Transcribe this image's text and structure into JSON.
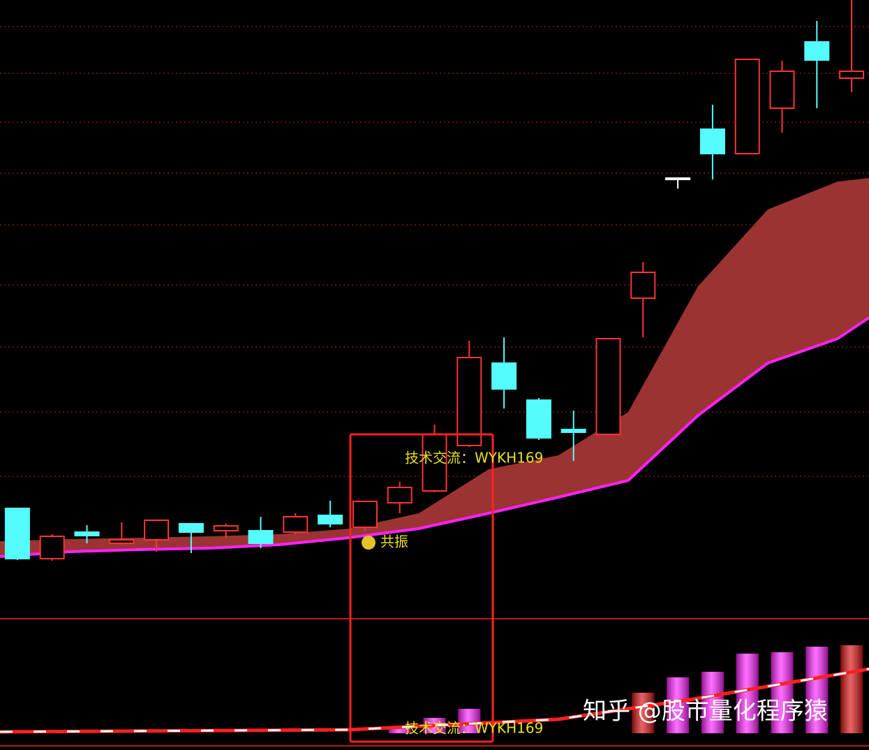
{
  "chart_data": [
    {
      "type": "candlestick",
      "xlim": [
        0,
        1245
      ],
      "ylim": [
        0,
        880
      ],
      "categories": [
        null,
        null,
        null,
        null,
        null,
        null,
        null,
        null,
        null,
        null,
        null,
        null,
        null,
        null,
        null,
        null,
        null,
        null,
        null,
        null,
        null,
        null,
        null,
        null,
        null
      ],
      "open": [
        152,
        80,
        118,
        102,
        107,
        130,
        120,
        120,
        118,
        142,
        125,
        160,
        177,
        242,
        360,
        307,
        265,
        258,
        453,
        625,
        695,
        660,
        725,
        820,
        768
      ],
      "high": [
        152,
        115,
        128,
        132,
        135,
        130,
        130,
        140,
        145,
        163,
        162,
        190,
        272,
        392,
        397,
        310,
        292,
        395,
        505,
        625,
        730,
        795,
        793,
        850,
        880
      ],
      "low": [
        78,
        77,
        102,
        100,
        90,
        88,
        110,
        95,
        115,
        125,
        120,
        145,
        175,
        240,
        295,
        250,
        220,
        258,
        397,
        610,
        623,
        660,
        690,
        725,
        748
      ],
      "close": [
        80,
        112,
        113,
        107,
        135,
        118,
        127,
        102,
        140,
        130,
        162,
        182,
        258,
        368,
        323,
        253,
        261,
        395,
        490,
        625,
        660,
        795,
        778,
        794,
        778
      ],
      "up_color": "#ff3434",
      "down_color": "#54fcfc",
      "flat_color": "#ffffff",
      "grid": true,
      "grid_color": "#c02020",
      "gridlines": [
        842,
        775,
        705,
        632,
        558,
        472,
        383,
        290,
        198
      ],
      "bands": {
        "x": [
          0,
          100,
          200,
          300,
          400,
          500,
          600,
          700,
          800,
          900,
          1000,
          1100,
          1200,
          1245
        ],
        "lower": [
          83,
          90,
          93,
          95,
          100,
          110,
          123,
          145,
          168,
          192,
          285,
          360,
          395,
          425
        ],
        "upper": [
          105,
          108,
          110,
          112,
          115,
          123,
          145,
          208,
          228,
          290,
          470,
          580,
          620,
          625
        ],
        "fill": "#9c3333",
        "line_color": "#ff22ff"
      },
      "annotations": [
        "技术交流：WYKH169",
        "共振"
      ]
    },
    {
      "type": "bar",
      "ylim": [
        -24,
        164
      ],
      "categories": [
        null,
        null,
        null,
        null,
        null,
        null,
        null,
        null,
        null,
        null,
        null,
        null,
        null,
        null,
        null,
        null,
        null,
        null,
        null,
        null,
        null,
        null,
        null,
        null,
        null
      ],
      "values": [
        null,
        null,
        null,
        null,
        null,
        null,
        null,
        null,
        null,
        null,
        null,
        10,
        22,
        35,
        null,
        null,
        null,
        null,
        58,
        80,
        88,
        114,
        116,
        124,
        126
      ],
      "colors": [
        null,
        null,
        null,
        null,
        null,
        null,
        null,
        null,
        null,
        null,
        null,
        "#ff22ff",
        "#ff22ff",
        "#ff22ff",
        null,
        null,
        null,
        null,
        "#d81010",
        "#ff22ff",
        "#ff22ff",
        "#ff22ff",
        "#ff22ff",
        "#ff22ff",
        "#d81010"
      ],
      "line": {
        "x": [
          0,
          500,
          800,
          1000,
          1245
        ],
        "values": [
          2,
          5,
          20,
          50,
          92
        ],
        "color": "#ff2020"
      },
      "annotation": "技术交流：WYKH169"
    }
  ],
  "watermark": "知乎 @股市量化程序猿"
}
